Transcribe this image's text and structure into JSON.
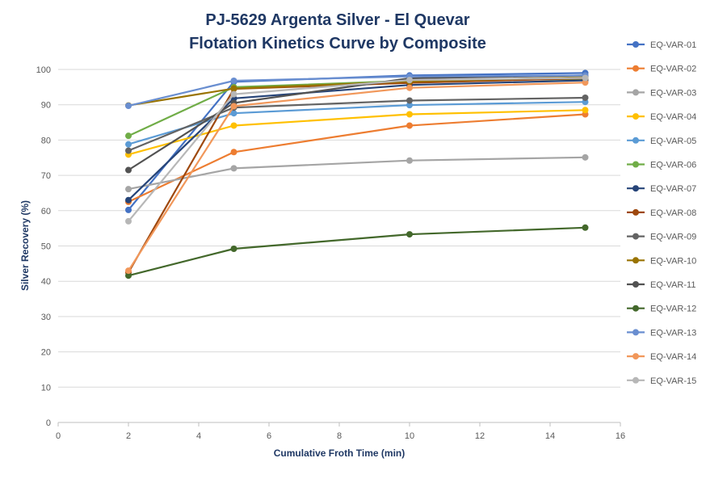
{
  "chart_data": {
    "type": "line",
    "title": [
      "PJ-5629 Argenta Silver - El Quevar",
      "Flotation Kinetics Curve by Composite"
    ],
    "xlabel": "Cumulative Froth Time (min)",
    "ylabel": "Silver Recovery (%)",
    "xlim": [
      0,
      16
    ],
    "ylim": [
      0,
      100
    ],
    "xticks": [
      0,
      2,
      4,
      6,
      8,
      10,
      12,
      14,
      16
    ],
    "yticks": [
      0,
      10,
      20,
      30,
      40,
      50,
      60,
      70,
      80,
      90,
      100
    ],
    "x": [
      2,
      5,
      10,
      15
    ],
    "grid": "horizontal",
    "legend": "right",
    "series": [
      {
        "name": "EQ-VAR-01",
        "color": "#4472c4",
        "values": [
          60.2,
          96.5,
          98.3,
          99.0
        ]
      },
      {
        "name": "EQ-VAR-02",
        "color": "#ed7d31",
        "values": [
          62.5,
          76.6,
          84.1,
          87.3
        ]
      },
      {
        "name": "EQ-VAR-03",
        "color": "#a5a5a5",
        "values": [
          66.1,
          72.0,
          74.2,
          75.1
        ]
      },
      {
        "name": "EQ-VAR-04",
        "color": "#ffc000",
        "values": [
          75.9,
          84.1,
          87.3,
          88.5
        ]
      },
      {
        "name": "EQ-VAR-05",
        "color": "#5b9bd5",
        "values": [
          78.8,
          87.6,
          89.9,
          90.8
        ]
      },
      {
        "name": "EQ-VAR-06",
        "color": "#70ad47",
        "values": [
          81.2,
          95.0,
          96.8,
          97.3
        ]
      },
      {
        "name": "EQ-VAR-07",
        "color": "#264478",
        "values": [
          63.0,
          91.8,
          95.6,
          96.9
        ]
      },
      {
        "name": "EQ-VAR-08",
        "color": "#9e480e",
        "values": [
          42.5,
          94.5,
          96.2,
          97.5
        ]
      },
      {
        "name": "EQ-VAR-09",
        "color": "#636363",
        "values": [
          77.0,
          89.2,
          91.2,
          92.0
        ]
      },
      {
        "name": "EQ-VAR-10",
        "color": "#997300",
        "values": [
          89.8,
          94.6,
          96.6,
          97.8
        ]
      },
      {
        "name": "EQ-VAR-11",
        "color": "#525252",
        "values": [
          71.5,
          90.5,
          97.5,
          98.3
        ]
      },
      {
        "name": "EQ-VAR-12",
        "color": "#43682b",
        "values": [
          41.6,
          49.2,
          53.3,
          55.2
        ]
      },
      {
        "name": "EQ-VAR-13",
        "color": "#698ed0",
        "values": [
          89.7,
          96.8,
          98.0,
          98.3
        ]
      },
      {
        "name": "EQ-VAR-14",
        "color": "#f1975a",
        "values": [
          43.0,
          89.6,
          94.8,
          96.3
        ]
      },
      {
        "name": "EQ-VAR-15",
        "color": "#b7b7b7",
        "values": [
          57.0,
          93.0,
          97.0,
          97.6
        ]
      }
    ]
  }
}
